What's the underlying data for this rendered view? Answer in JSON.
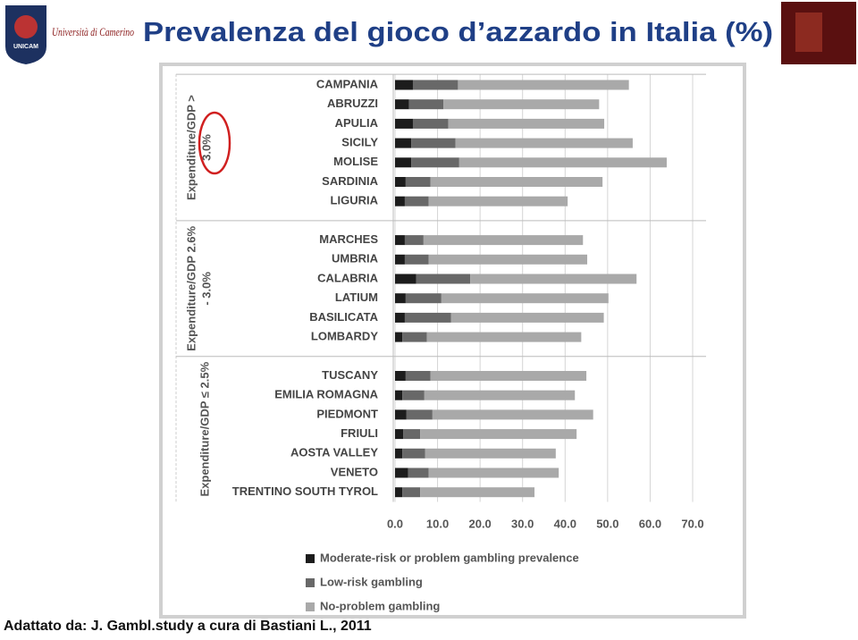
{
  "header": {
    "title": "Prevalenza del gioco d’azzardo in Italia (%)",
    "logo_text": "Università di Camerino",
    "logo_short": "UNICAM"
  },
  "chart_data": {
    "type": "stacked-bar-horizontal",
    "categories": [
      "CAMPANIA",
      "ABRUZZI",
      "APULIA",
      "SICILY",
      "MOLISE",
      "SARDINIA",
      "LIGURIA",
      "MARCHES",
      "UMBRIA",
      "CALABRIA",
      "LATIUM",
      "BASILICATA",
      "LOMBARDY",
      "TUSCANY",
      "EMILIA ROMAGNA",
      "PIEDMONT",
      "FRIULI",
      "AOSTA VALLEY",
      "VENETO",
      "TRENTINO SOUTH TYROL"
    ],
    "groups": [
      {
        "lines": [
          "Expenditure/GDP >",
          "3.0%"
        ],
        "count": 7
      },
      {
        "lines": [
          "Expenditure/GDP 2.6%",
          "- 3.0%"
        ],
        "count": 6
      },
      {
        "lines": [
          "Expenditure/GDP ≤ 2.5%"
        ],
        "count": 7
      }
    ],
    "series": [
      {
        "name": "Moderate-risk or problem gambling prevalence",
        "color": "#1c1c1c",
        "values": [
          4.2,
          3.3,
          4.2,
          3.8,
          3.8,
          2.5,
          2.3,
          2.3,
          2.3,
          5.0,
          2.5,
          2.3,
          1.7,
          2.5,
          1.7,
          2.7,
          1.9,
          1.7,
          3.1,
          1.7
        ]
      },
      {
        "name": "Low-risk gambling",
        "color": "#686868",
        "values": [
          10.6,
          8.1,
          8.3,
          10.4,
          11.3,
          5.8,
          5.6,
          4.4,
          5.6,
          12.7,
          8.4,
          10.9,
          5.8,
          5.8,
          5.2,
          6.1,
          4.0,
          5.4,
          4.8,
          4.2
        ]
      },
      {
        "name": "No-problem gambling",
        "color": "#a9a9a9",
        "values": [
          40.2,
          36.6,
          36.7,
          41.7,
          48.8,
          40.5,
          32.7,
          37.5,
          37.3,
          39.1,
          39.3,
          35.9,
          36.3,
          36.7,
          35.4,
          37.8,
          36.8,
          30.7,
          30.6,
          26.9
        ]
      }
    ],
    "xlim": [
      0,
      70
    ],
    "xticks": [
      {
        "value": 0,
        "label": "0.0"
      },
      {
        "value": 10,
        "label": "10.0"
      },
      {
        "value": 20,
        "label": "20.0"
      },
      {
        "value": 30,
        "label": "30.0"
      },
      {
        "value": 40,
        "label": "40.0"
      },
      {
        "value": 50,
        "label": "50.0"
      },
      {
        "value": 60,
        "label": "60.0"
      },
      {
        "value": 70,
        "label": "70.0"
      }
    ],
    "grid": true
  },
  "source": "Adattato da: J. Gambl.study a cura di Bastiani L., 2011"
}
